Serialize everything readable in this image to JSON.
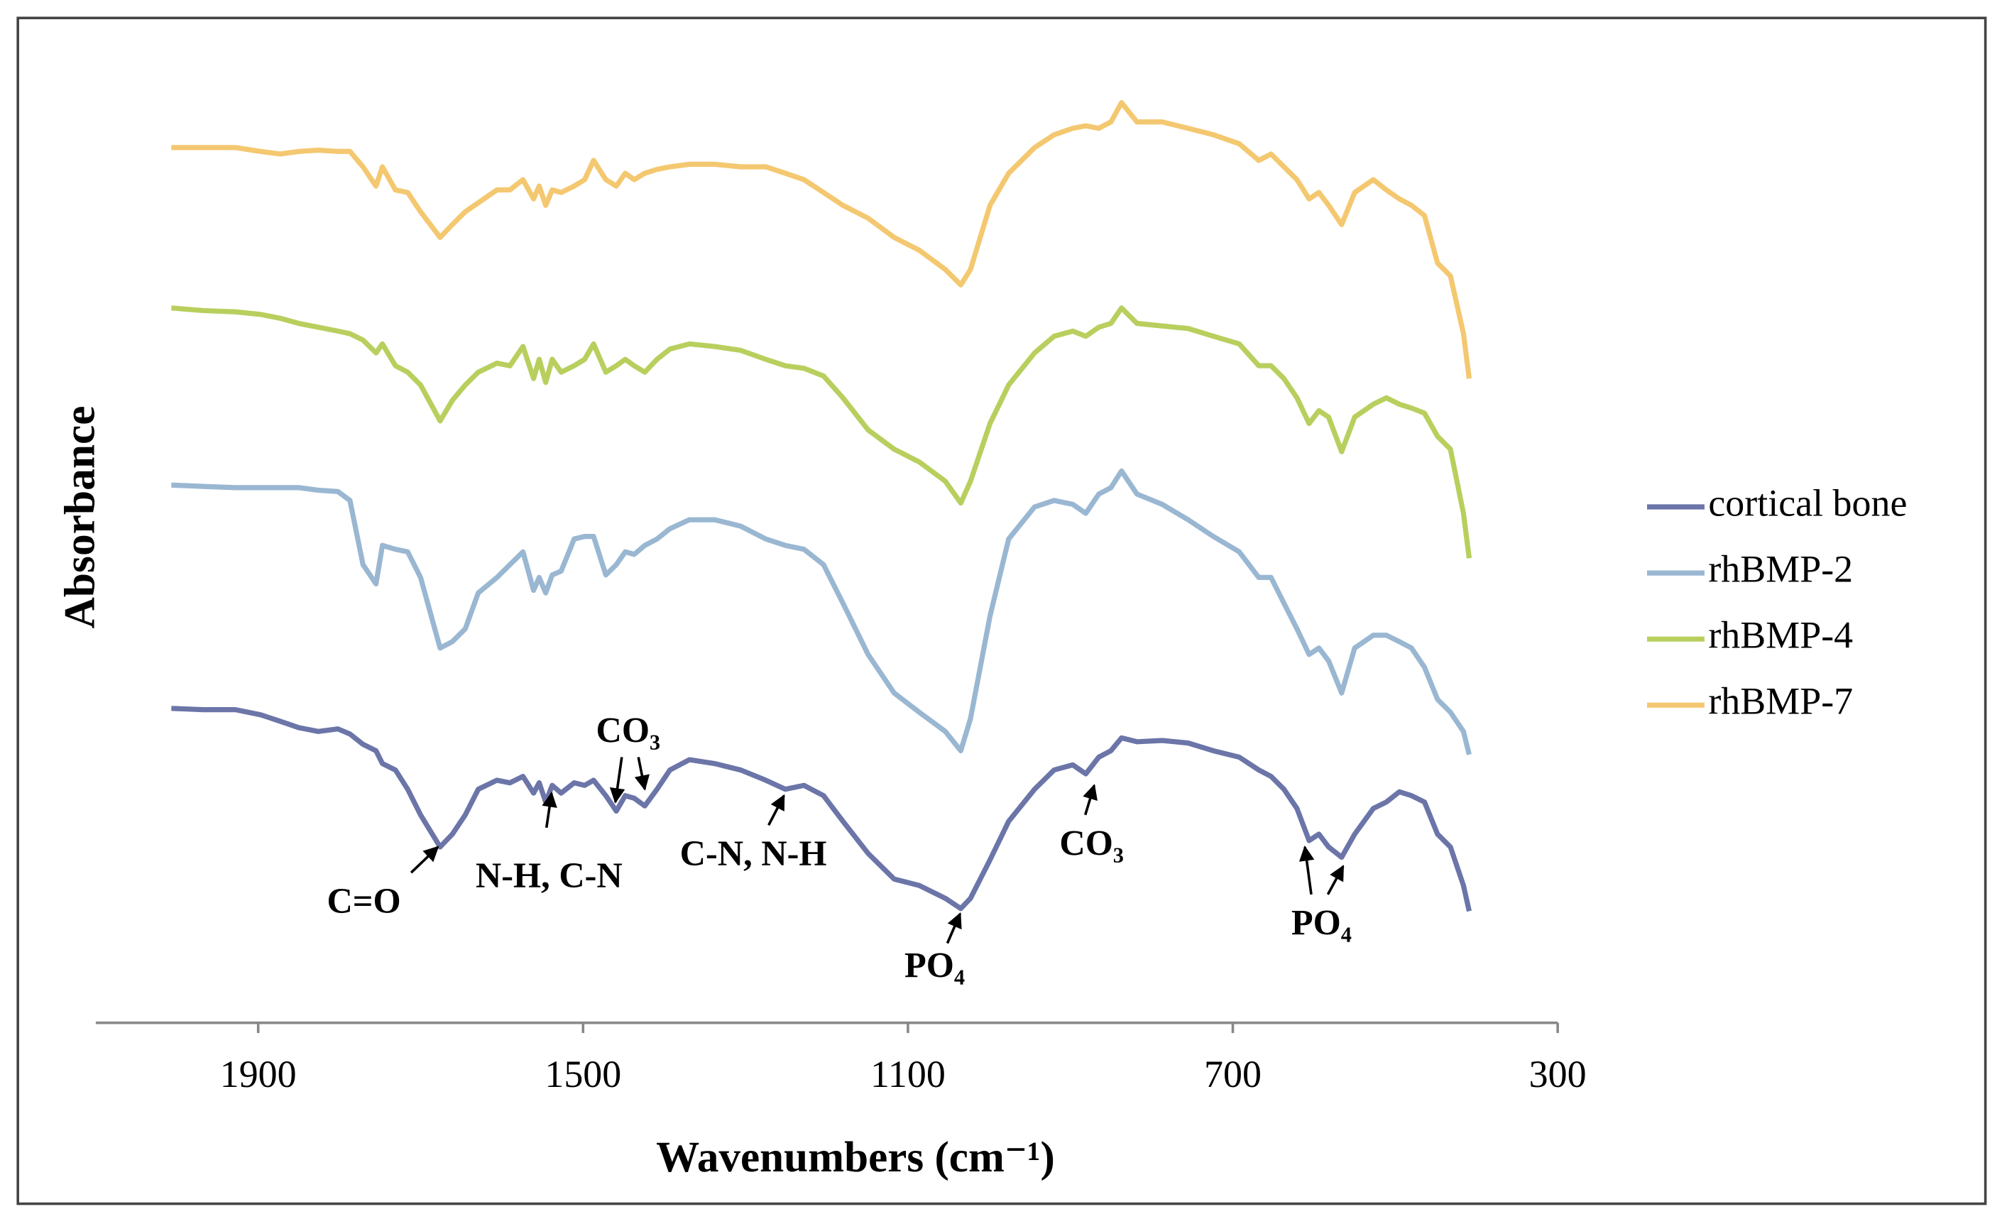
{
  "chart_data": {
    "type": "line",
    "x_label": "Wavenumbers (cm⁻¹)",
    "y_label": "Absorbance",
    "xlim": [
      2100,
      300
    ],
    "xticks": [
      1900,
      1500,
      1100,
      700,
      300
    ],
    "ylim": [
      0,
      780
    ],
    "legend": "right",
    "x": [
      2007,
      1968,
      1928,
      1897,
      1873,
      1850,
      1826,
      1802,
      1787,
      1771,
      1755,
      1747,
      1731,
      1716,
      1700,
      1676,
      1661,
      1645,
      1629,
      1606,
      1590,
      1574,
      1561,
      1554,
      1546,
      1538,
      1527,
      1511,
      1498,
      1487,
      1472,
      1459,
      1448,
      1437,
      1424,
      1409,
      1393,
      1369,
      1338,
      1306,
      1275,
      1251,
      1228,
      1204,
      1180,
      1149,
      1117,
      1086,
      1054,
      1035,
      1023,
      999,
      976,
      944,
      920,
      897,
      881,
      865,
      850,
      837,
      818,
      787,
      755,
      724,
      692,
      668,
      653,
      637,
      621,
      606,
      594,
      582,
      566,
      550,
      527,
      511,
      495,
      480,
      464,
      448,
      432,
      416,
      409
    ],
    "series": [
      {
        "name": "cortical bone",
        "color": "#6b75a8",
        "values": [
          245,
          244,
          244,
          240,
          235,
          230,
          227,
          229,
          225,
          217,
          212,
          202,
          197,
          182,
          162,
          137,
          147,
          162,
          182,
          189,
          187,
          192,
          179,
          187,
          172,
          185,
          179,
          187,
          185,
          189,
          177,
          165,
          177,
          175,
          169,
          182,
          197,
          205,
          202,
          197,
          189,
          182,
          185,
          177,
          157,
          132,
          112,
          107,
          97,
          89,
          97,
          127,
          157,
          182,
          197,
          201,
          194,
          207,
          212,
          222,
          219,
          220,
          218,
          212,
          207,
          197,
          192,
          182,
          167,
          142,
          147,
          137,
          129,
          147,
          167,
          172,
          180,
          177,
          172,
          147,
          137,
          107,
          87
        ]
      },
      {
        "name": "rhBMP-2",
        "color": "#9ab7d2",
        "values": [
          419,
          418,
          417,
          417,
          417,
          417,
          415,
          414,
          407,
          357,
          342,
          372,
          369,
          367,
          347,
          292,
          297,
          307,
          335,
          347,
          357,
          367,
          337,
          347,
          335,
          349,
          352,
          377,
          379,
          379,
          349,
          357,
          367,
          365,
          372,
          377,
          385,
          392,
          392,
          387,
          377,
          372,
          369,
          357,
          327,
          287,
          257,
          242,
          227,
          212,
          237,
          317,
          377,
          402,
          407,
          404,
          397,
          412,
          417,
          430,
          412,
          404,
          392,
          379,
          367,
          347,
          347,
          327,
          307,
          287,
          292,
          282,
          257,
          292,
          302,
          302,
          297,
          292,
          277,
          252,
          242,
          227,
          209
        ]
      },
      {
        "name": "rhBMP-4",
        "color": "#b8cf5e",
        "values": [
          557,
          555,
          554,
          552,
          549,
          545,
          542,
          539,
          537,
          532,
          522,
          529,
          512,
          507,
          497,
          469,
          485,
          497,
          507,
          514,
          512,
          527,
          502,
          517,
          499,
          517,
          507,
          512,
          517,
          529,
          507,
          512,
          517,
          512,
          507,
          517,
          525,
          529,
          527,
          524,
          517,
          512,
          510,
          504,
          487,
          462,
          447,
          437,
          422,
          405,
          422,
          467,
          497,
          522,
          535,
          539,
          535,
          542,
          545,
          557,
          545,
          543,
          541,
          535,
          529,
          512,
          512,
          502,
          487,
          467,
          477,
          472,
          445,
          472,
          482,
          487,
          482,
          479,
          475,
          457,
          447,
          397,
          362
        ]
      },
      {
        "name": "rhBMP-7",
        "color": "#f4c870",
        "values": [
          682,
          682,
          682,
          679,
          677,
          679,
          680,
          679,
          679,
          667,
          652,
          667,
          649,
          647,
          632,
          612,
          622,
          632,
          639,
          649,
          649,
          657,
          642,
          652,
          637,
          649,
          647,
          652,
          657,
          672,
          657,
          652,
          662,
          657,
          662,
          665,
          667,
          669,
          669,
          667,
          667,
          662,
          657,
          647,
          637,
          627,
          612,
          602,
          587,
          575,
          587,
          637,
          662,
          682,
          692,
          697,
          699,
          697,
          702,
          717,
          702,
          702,
          697,
          692,
          685,
          672,
          677,
          667,
          657,
          642,
          647,
          637,
          622,
          647,
          657,
          649,
          642,
          637,
          629,
          592,
          582,
          537,
          502
        ]
      }
    ],
    "annotations": [
      "C=O",
      "N-H, C-N",
      "CO₃",
      "C-N, N-H",
      "PO₄",
      "CO₃",
      "PO₄"
    ]
  }
}
